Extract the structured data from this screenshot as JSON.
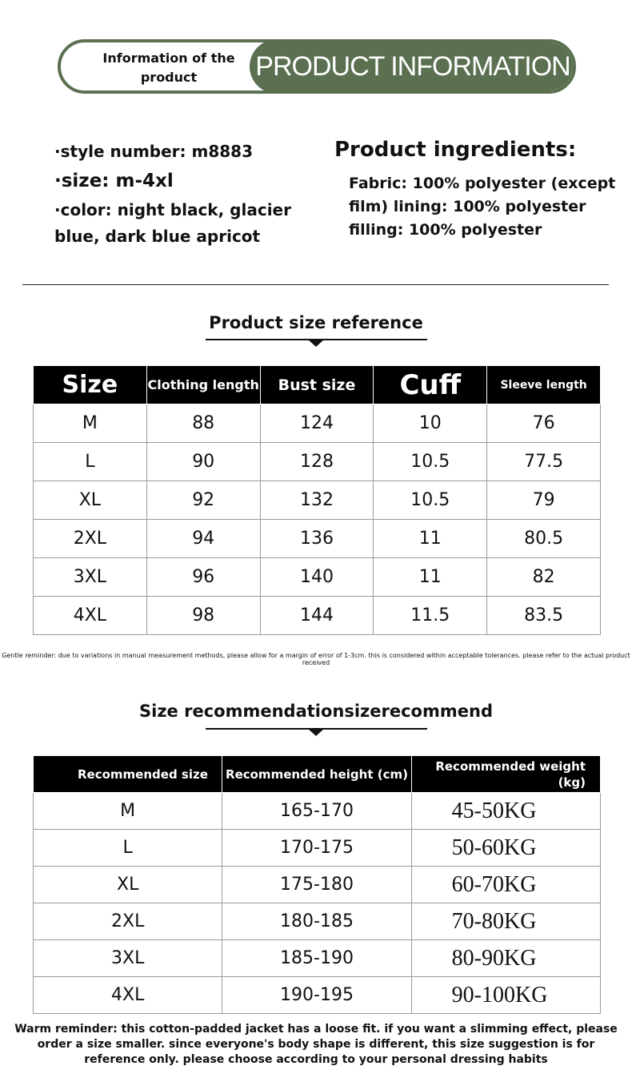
{
  "banner": {
    "left": "Information of the product",
    "right": "PRODUCT INFORMATION"
  },
  "info": {
    "style": "·style number: m8883",
    "size": "·size: m-4xl",
    "color": "·color: night black, glacier blue, dark blue apricot",
    "ingredients_title": "Product ingredients:",
    "ingredients": "Fabric: 100% polyester (except film) lining: 100% polyester filling: 100% polyester"
  },
  "size_ref": {
    "title": "Product size reference",
    "headers": [
      "Size",
      "Clothing length",
      "Bust size",
      "Cuff",
      "Sleeve length"
    ],
    "rows": [
      [
        "M",
        "88",
        "124",
        "10",
        "76"
      ],
      [
        "L",
        "90",
        "128",
        "10.5",
        "77.5"
      ],
      [
        "XL",
        "92",
        "132",
        "10.5",
        "79"
      ],
      [
        "2XL",
        "94",
        "136",
        "11",
        "80.5"
      ],
      [
        "3XL",
        "96",
        "140",
        "11",
        "82"
      ],
      [
        "4XL",
        "98",
        "144",
        "11.5",
        "83.5"
      ]
    ],
    "note": "Gentle reminder: due to variations in manual measurement methods, please allow for a margin of error of 1-3cm. this is considered within acceptable tolerances. please refer to the actual product received"
  },
  "recommend": {
    "title": "Size recommendationsizerecommend",
    "headers": [
      "Recommended size",
      "Recommended height (cm)",
      "Recommended weight (kg)"
    ],
    "rows": [
      [
        "M",
        "165-170",
        "45-50KG"
      ],
      [
        "L",
        "170-175",
        "50-60KG"
      ],
      [
        "XL",
        "175-180",
        "60-70KG"
      ],
      [
        "2XL",
        "180-185",
        "70-80KG"
      ],
      [
        "3XL",
        "185-190",
        "80-90KG"
      ],
      [
        "4XL",
        "190-195",
        "90-100KG"
      ]
    ],
    "note": "Warm reminder: this cotton-padded jacket has a loose fit. if you want a slimming effect, please order a size smaller. since everyone's body shape is different, this size suggestion is for reference only. please choose according to your personal dressing habits"
  },
  "colors": {
    "accent": "#5a7050"
  }
}
